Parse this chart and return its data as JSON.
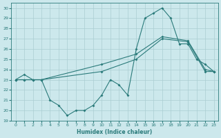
{
  "xlabel": "Humidex (Indice chaleur)",
  "background_color": "#cce8ec",
  "grid_color": "#aacdd2",
  "line_color": "#2a7a7a",
  "xlim": [
    -0.5,
    23.5
  ],
  "ylim": [
    19,
    30.5
  ],
  "yticks": [
    19,
    20,
    21,
    22,
    23,
    24,
    25,
    26,
    27,
    28,
    29,
    30
  ],
  "xticks": [
    0,
    1,
    2,
    3,
    4,
    5,
    6,
    7,
    8,
    9,
    10,
    11,
    12,
    13,
    14,
    15,
    16,
    17,
    18,
    19,
    20,
    21,
    22,
    23
  ],
  "line1_x": [
    0,
    1,
    2,
    3,
    4,
    5,
    6,
    7,
    8,
    9,
    10,
    11,
    12,
    13,
    14,
    15,
    16,
    17,
    18,
    19,
    20,
    21,
    22,
    23
  ],
  "line1_y": [
    23.0,
    23.5,
    23.0,
    23.0,
    21.0,
    20.5,
    19.5,
    20.0,
    20.0,
    20.5,
    21.5,
    23.0,
    22.5,
    21.5,
    26.0,
    29.0,
    29.5,
    30.0,
    29.0,
    26.5,
    26.5,
    25.0,
    24.5,
    23.8
  ],
  "line2_x": [
    0,
    1,
    2,
    3,
    10,
    14,
    17,
    20,
    22,
    23
  ],
  "line2_y": [
    23.0,
    23.0,
    23.0,
    23.0,
    24.5,
    25.5,
    27.2,
    26.8,
    24.0,
    23.8
  ],
  "line3_x": [
    0,
    1,
    2,
    3,
    10,
    14,
    17,
    20,
    22,
    23
  ],
  "line3_y": [
    23.0,
    23.0,
    23.0,
    23.0,
    23.8,
    25.0,
    27.0,
    26.7,
    23.8,
    23.8
  ]
}
